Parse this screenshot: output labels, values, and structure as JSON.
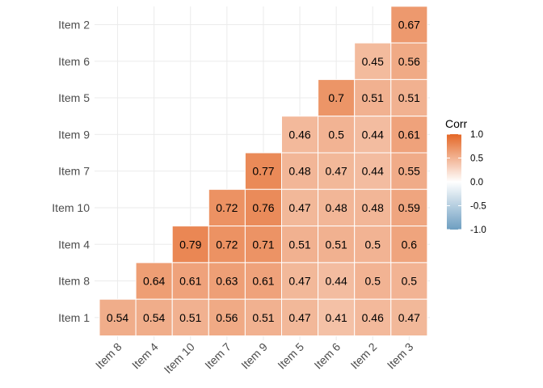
{
  "chart_data": {
    "type": "heatmap",
    "x_categories": [
      "Item 8",
      "Item 4",
      "Item 10",
      "Item 7",
      "Item 9",
      "Item 5",
      "Item 6",
      "Item 2",
      "Item 3"
    ],
    "y_categories": [
      "Item 1",
      "Item 8",
      "Item 4",
      "Item 10",
      "Item 7",
      "Item 9",
      "Item 5",
      "Item 6",
      "Item 2"
    ],
    "cells": [
      {
        "x": "Item 3",
        "y": "Item 2",
        "value": 0.67,
        "label": "0.67"
      },
      {
        "x": "Item 2",
        "y": "Item 6",
        "value": 0.45,
        "label": "0.45"
      },
      {
        "x": "Item 3",
        "y": "Item 6",
        "value": 0.56,
        "label": "0.56"
      },
      {
        "x": "Item 6",
        "y": "Item 5",
        "value": 0.7,
        "label": "0.7"
      },
      {
        "x": "Item 2",
        "y": "Item 5",
        "value": 0.51,
        "label": "0.51"
      },
      {
        "x": "Item 3",
        "y": "Item 5",
        "value": 0.51,
        "label": "0.51"
      },
      {
        "x": "Item 5",
        "y": "Item 9",
        "value": 0.46,
        "label": "0.46"
      },
      {
        "x": "Item 6",
        "y": "Item 9",
        "value": 0.5,
        "label": "0.5"
      },
      {
        "x": "Item 2",
        "y": "Item 9",
        "value": 0.44,
        "label": "0.44"
      },
      {
        "x": "Item 3",
        "y": "Item 9",
        "value": 0.61,
        "label": "0.61"
      },
      {
        "x": "Item 9",
        "y": "Item 7",
        "value": 0.77,
        "label": "0.77"
      },
      {
        "x": "Item 5",
        "y": "Item 7",
        "value": 0.48,
        "label": "0.48"
      },
      {
        "x": "Item 6",
        "y": "Item 7",
        "value": 0.47,
        "label": "0.47"
      },
      {
        "x": "Item 2",
        "y": "Item 7",
        "value": 0.44,
        "label": "0.44"
      },
      {
        "x": "Item 3",
        "y": "Item 7",
        "value": 0.55,
        "label": "0.55"
      },
      {
        "x": "Item 7",
        "y": "Item 10",
        "value": 0.72,
        "label": "0.72"
      },
      {
        "x": "Item 9",
        "y": "Item 10",
        "value": 0.76,
        "label": "0.76"
      },
      {
        "x": "Item 5",
        "y": "Item 10",
        "value": 0.47,
        "label": "0.47"
      },
      {
        "x": "Item 6",
        "y": "Item 10",
        "value": 0.48,
        "label": "0.48"
      },
      {
        "x": "Item 2",
        "y": "Item 10",
        "value": 0.48,
        "label": "0.48"
      },
      {
        "x": "Item 3",
        "y": "Item 10",
        "value": 0.59,
        "label": "0.59"
      },
      {
        "x": "Item 10",
        "y": "Item 4",
        "value": 0.79,
        "label": "0.79"
      },
      {
        "x": "Item 7",
        "y": "Item 4",
        "value": 0.72,
        "label": "0.72"
      },
      {
        "x": "Item 9",
        "y": "Item 4",
        "value": 0.71,
        "label": "0.71"
      },
      {
        "x": "Item 5",
        "y": "Item 4",
        "value": 0.51,
        "label": "0.51"
      },
      {
        "x": "Item 6",
        "y": "Item 4",
        "value": 0.51,
        "label": "0.51"
      },
      {
        "x": "Item 2",
        "y": "Item 4",
        "value": 0.5,
        "label": "0.5"
      },
      {
        "x": "Item 3",
        "y": "Item 4",
        "value": 0.6,
        "label": "0.6"
      },
      {
        "x": "Item 4",
        "y": "Item 8",
        "value": 0.64,
        "label": "0.64"
      },
      {
        "x": "Item 10",
        "y": "Item 8",
        "value": 0.61,
        "label": "0.61"
      },
      {
        "x": "Item 7",
        "y": "Item 8",
        "value": 0.63,
        "label": "0.63"
      },
      {
        "x": "Item 9",
        "y": "Item 8",
        "value": 0.61,
        "label": "0.61"
      },
      {
        "x": "Item 5",
        "y": "Item 8",
        "value": 0.47,
        "label": "0.47"
      },
      {
        "x": "Item 6",
        "y": "Item 8",
        "value": 0.44,
        "label": "0.44"
      },
      {
        "x": "Item 2",
        "y": "Item 8",
        "value": 0.5,
        "label": "0.5"
      },
      {
        "x": "Item 3",
        "y": "Item 8",
        "value": 0.5,
        "label": "0.5"
      },
      {
        "x": "Item 8",
        "y": "Item 1",
        "value": 0.54,
        "label": "0.54"
      },
      {
        "x": "Item 4",
        "y": "Item 1",
        "value": 0.54,
        "label": "0.54"
      },
      {
        "x": "Item 10",
        "y": "Item 1",
        "value": 0.51,
        "label": "0.51"
      },
      {
        "x": "Item 7",
        "y": "Item 1",
        "value": 0.56,
        "label": "0.56"
      },
      {
        "x": "Item 9",
        "y": "Item 1",
        "value": 0.51,
        "label": "0.51"
      },
      {
        "x": "Item 5",
        "y": "Item 1",
        "value": 0.47,
        "label": "0.47"
      },
      {
        "x": "Item 6",
        "y": "Item 1",
        "value": 0.41,
        "label": "0.41"
      },
      {
        "x": "Item 2",
        "y": "Item 1",
        "value": 0.46,
        "label": "0.46"
      },
      {
        "x": "Item 3",
        "y": "Item 1",
        "value": 0.47,
        "label": "0.47"
      }
    ],
    "legend": {
      "title": "Corr",
      "range": [
        -1.0,
        1.0
      ],
      "breaks": [
        1.0,
        0.5,
        0.0,
        -0.5,
        -1.0
      ],
      "break_labels": [
        "1.0",
        "0.5",
        "0.0",
        "-0.5",
        "-1.0"
      ],
      "placement": "right"
    },
    "colors": {
      "low": "#6d9ec1",
      "mid": "#ffffff",
      "high": "#e46726",
      "grid": "#ebebeb",
      "tile_border": "#ffffff"
    },
    "grid": true,
    "title": "",
    "xlabel": "",
    "ylabel": ""
  }
}
